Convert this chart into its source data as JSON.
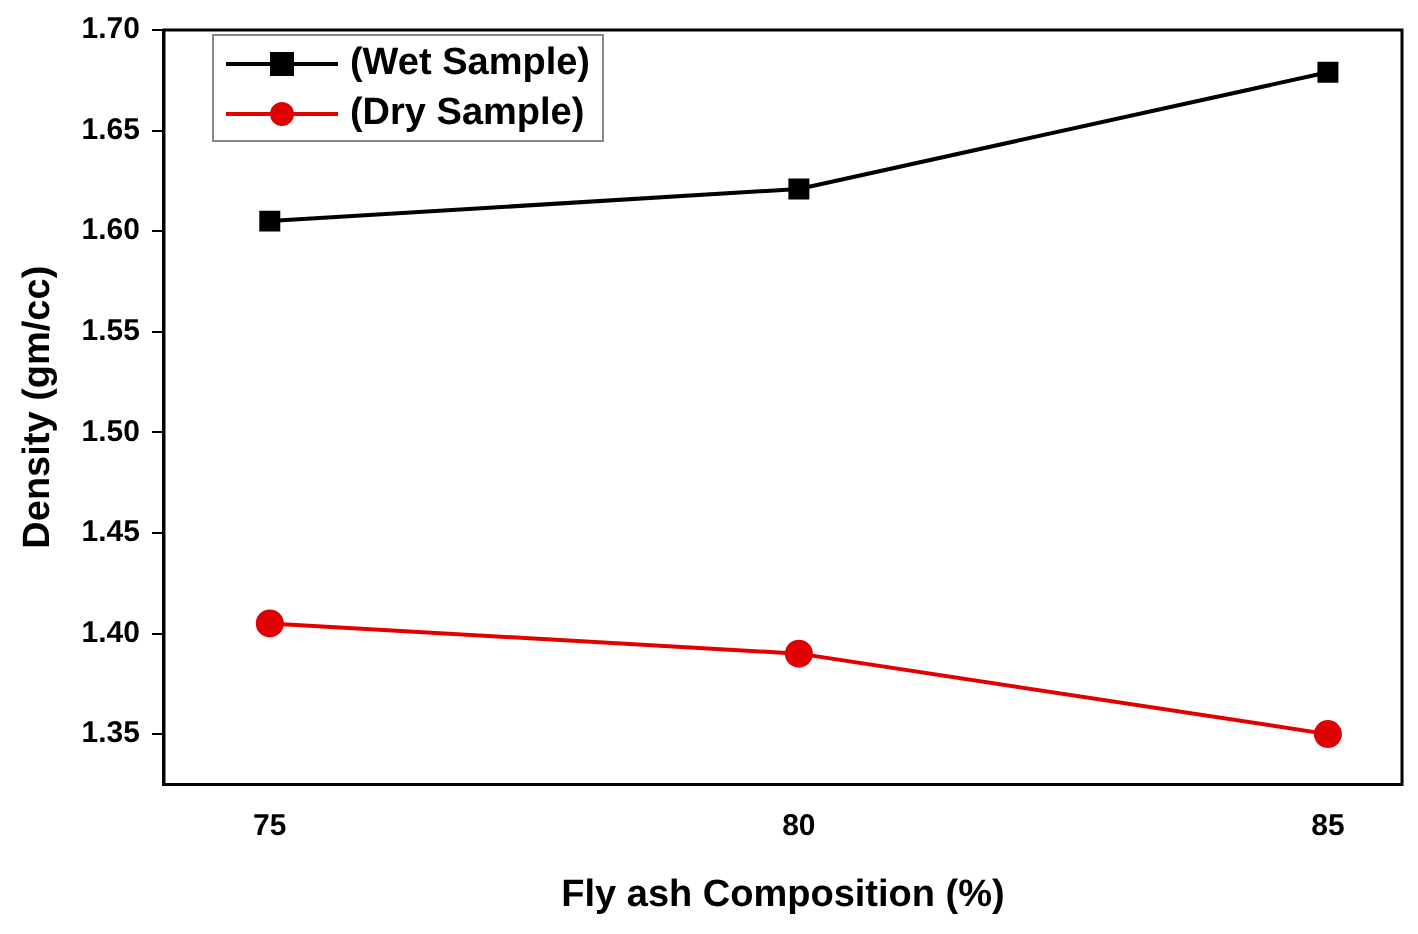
{
  "chart_data": {
    "type": "line",
    "xlabel": "Fly ash Composition (%)",
    "ylabel": "Density (gm/cc)",
    "x": [
      75,
      80,
      85
    ],
    "series": [
      {
        "name": "(Wet Sample)",
        "color": "#000000",
        "marker": "square",
        "values": [
          1.605,
          1.621,
          1.679
        ]
      },
      {
        "name": "(Dry Sample)",
        "color": "#e00000",
        "marker": "circle",
        "values": [
          1.405,
          1.39,
          1.35
        ]
      }
    ],
    "xlim": [
      74,
      85.7
    ],
    "xticks": [
      75,
      80,
      85
    ],
    "ylim": [
      1.325,
      1.7
    ],
    "yticks": [
      1.35,
      {
        "value": 1.4,
        "label": "1.40"
      },
      1.45,
      {
        "value": 1.5,
        "label": "1.50"
      },
      1.55,
      {
        "value": 1.6,
        "label": "1.60"
      },
      1.65,
      {
        "value": 1.7,
        "label": "1.70"
      }
    ],
    "grid": false,
    "legend": "top left"
  }
}
